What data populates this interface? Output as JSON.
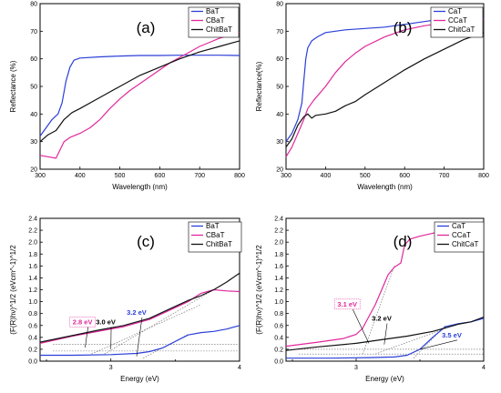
{
  "chart_data": [
    {
      "id": "a",
      "panel_label": "(a)",
      "type": "line",
      "xlabel": "Wavelength (nm)",
      "ylabel": "Reflectance (%)",
      "xlim": [
        300,
        800
      ],
      "ylim": [
        20,
        80
      ],
      "xticks": [
        300,
        400,
        500,
        600,
        700,
        800
      ],
      "yticks": [
        20,
        30,
        40,
        50,
        60,
        70,
        80
      ],
      "xtick_labels": [
        "300",
        "400",
        "500",
        "600",
        "700",
        "800"
      ],
      "ytick_labels": [
        "20",
        "30",
        "40",
        "50",
        "60",
        "70",
        "80"
      ],
      "legend": "top-right",
      "series": [
        {
          "name": "BaT",
          "color": "#2b3fd8",
          "points": [
            [
              300,
              32
            ],
            [
              315,
              35
            ],
            [
              330,
              38
            ],
            [
              345,
              40
            ],
            [
              355,
              44
            ],
            [
              365,
              52
            ],
            [
              375,
              57
            ],
            [
              385,
              59.5
            ],
            [
              400,
              60.3
            ],
            [
              450,
              60.7
            ],
            [
              500,
              61
            ],
            [
              550,
              61.2
            ],
            [
              600,
              61.2
            ],
            [
              650,
              61.3
            ],
            [
              700,
              61.3
            ],
            [
              750,
              61.3
            ],
            [
              800,
              61.2
            ]
          ]
        },
        {
          "name": "CBaT",
          "color": "#e0289c",
          "points": [
            [
              300,
              25
            ],
            [
              320,
              24.5
            ],
            [
              340,
              24
            ],
            [
              350,
              27
            ],
            [
              360,
              30
            ],
            [
              375,
              31.5
            ],
            [
              400,
              33
            ],
            [
              425,
              35
            ],
            [
              450,
              38
            ],
            [
              475,
              42
            ],
            [
              500,
              45.5
            ],
            [
              525,
              48.5
            ],
            [
              550,
              51
            ],
            [
              575,
              53.5
            ],
            [
              600,
              56
            ],
            [
              625,
              58.5
            ],
            [
              650,
              60.5
            ],
            [
              675,
              62.5
            ],
            [
              700,
              64.5
            ],
            [
              725,
              66
            ],
            [
              750,
              67.5
            ],
            [
              775,
              68.5
            ],
            [
              800,
              69.5
            ]
          ]
        },
        {
          "name": "ChitBaT",
          "color": "#111111",
          "points": [
            [
              300,
              30
            ],
            [
              320,
              32.5
            ],
            [
              340,
              34
            ],
            [
              360,
              38
            ],
            [
              380,
              40.5
            ],
            [
              400,
              42
            ],
            [
              450,
              46
            ],
            [
              500,
              50
            ],
            [
              550,
              54
            ],
            [
              600,
              57
            ],
            [
              650,
              60
            ],
            [
              700,
              62.5
            ],
            [
              750,
              64.5
            ],
            [
              800,
              66.5
            ]
          ]
        }
      ]
    },
    {
      "id": "b",
      "panel_label": "(b)",
      "type": "line",
      "xlabel": "Wavelength (nm)",
      "ylabel": "Reflectance(%)",
      "xlim": [
        300,
        800
      ],
      "ylim": [
        20,
        80
      ],
      "xticks": [
        300,
        400,
        500,
        600,
        700,
        800
      ],
      "yticks": [
        20,
        30,
        40,
        50,
        60,
        70,
        80
      ],
      "xtick_labels": [
        "300",
        "400",
        "500",
        "600",
        "700",
        "800"
      ],
      "ytick_labels": [
        "20",
        "30",
        "40",
        "50",
        "60",
        "70",
        "80"
      ],
      "legend": "top-right",
      "series": [
        {
          "name": "CaT",
          "color": "#2b3fd8",
          "points": [
            [
              300,
              30
            ],
            [
              315,
              33
            ],
            [
              330,
              38
            ],
            [
              340,
              44
            ],
            [
              345,
              52
            ],
            [
              350,
              60
            ],
            [
              355,
              64
            ],
            [
              365,
              66.5
            ],
            [
              380,
              68
            ],
            [
              400,
              69.5
            ],
            [
              450,
              70.5
            ],
            [
              500,
              71
            ],
            [
              550,
              71.5
            ],
            [
              600,
              72.5
            ],
            [
              650,
              73.5
            ],
            [
              700,
              74.5
            ],
            [
              750,
              75.2
            ],
            [
              800,
              75.5
            ]
          ]
        },
        {
          "name": "CCaT",
          "color": "#e0289c",
          "points": [
            [
              300,
              24.5
            ],
            [
              315,
              28
            ],
            [
              330,
              33
            ],
            [
              345,
              38
            ],
            [
              355,
              42
            ],
            [
              370,
              45
            ],
            [
              400,
              50
            ],
            [
              425,
              55
            ],
            [
              450,
              59
            ],
            [
              475,
              62
            ],
            [
              500,
              64.5
            ],
            [
              550,
              68
            ],
            [
              600,
              70.5
            ],
            [
              650,
              72
            ],
            [
              700,
              73
            ],
            [
              750,
              74
            ],
            [
              800,
              74.5
            ]
          ]
        },
        {
          "name": "ChitCaT",
          "color": "#111111",
          "points": [
            [
              300,
              28
            ],
            [
              315,
              31
            ],
            [
              330,
              36
            ],
            [
              345,
              39
            ],
            [
              355,
              40
            ],
            [
              365,
              38.5
            ],
            [
              375,
              39.5
            ],
            [
              400,
              40
            ],
            [
              425,
              41
            ],
            [
              450,
              43
            ],
            [
              475,
              44.5
            ],
            [
              500,
              47
            ],
            [
              550,
              51.5
            ],
            [
              600,
              56
            ],
            [
              650,
              60
            ],
            [
              700,
              63.5
            ],
            [
              750,
              67
            ],
            [
              800,
              69.5
            ]
          ]
        }
      ]
    },
    {
      "id": "c",
      "panel_label": "(c)",
      "type": "line",
      "xlabel": "Energy (eV)",
      "ylabel": "(F(R)hν)^1/2 (eVcm^-1)^1/2",
      "xlim": [
        2.45,
        4.0
      ],
      "ylim": [
        0,
        2.4
      ],
      "xticks": [
        3,
        4
      ],
      "xtick_labels": [
        "3",
        "4"
      ],
      "yticks": [
        0.0,
        0.2,
        0.4,
        0.6,
        0.8,
        1.0,
        1.2,
        1.4,
        1.6,
        1.8,
        2.0,
        2.2,
        2.4
      ],
      "ytick_labels": [
        "0.0",
        "0.2",
        "0.4",
        "0.6",
        "0.8",
        "1.0",
        "1.2",
        "1.4",
        "1.6",
        "1.8",
        "2.0",
        "2.2",
        "2.4"
      ],
      "legend": "top-right",
      "series": [
        {
          "name": "BaT",
          "color": "#2b3fd8",
          "points": [
            [
              2.45,
              0.1
            ],
            [
              2.7,
              0.1
            ],
            [
              3.0,
              0.11
            ],
            [
              3.2,
              0.13
            ],
            [
              3.3,
              0.16
            ],
            [
              3.4,
              0.22
            ],
            [
              3.5,
              0.33
            ],
            [
              3.6,
              0.44
            ],
            [
              3.7,
              0.48
            ],
            [
              3.8,
              0.5
            ],
            [
              3.9,
              0.54
            ],
            [
              4.0,
              0.6
            ]
          ]
        },
        {
          "name": "CBaT",
          "color": "#e0289c",
          "points": [
            [
              2.45,
              0.3
            ],
            [
              2.7,
              0.42
            ],
            [
              2.9,
              0.5
            ],
            [
              3.1,
              0.58
            ],
            [
              3.3,
              0.7
            ],
            [
              3.45,
              0.85
            ],
            [
              3.6,
              1.0
            ],
            [
              3.7,
              1.14
            ],
            [
              3.8,
              1.2
            ],
            [
              3.9,
              1.18
            ],
            [
              4.0,
              1.17
            ]
          ]
        },
        {
          "name": "ChitBaT",
          "color": "#111111",
          "points": [
            [
              2.45,
              0.32
            ],
            [
              2.7,
              0.43
            ],
            [
              2.9,
              0.52
            ],
            [
              3.1,
              0.6
            ],
            [
              3.3,
              0.72
            ],
            [
              3.45,
              0.87
            ],
            [
              3.6,
              1.02
            ],
            [
              3.7,
              1.1
            ],
            [
              3.8,
              1.2
            ],
            [
              3.9,
              1.33
            ],
            [
              4.0,
              1.48
            ]
          ]
        }
      ],
      "annotations": [
        {
          "text": "2.8 eV",
          "color": "#e0289c",
          "x": 2.78,
          "y": 0.62,
          "target": [
            2.8,
            0.23
          ],
          "boxed": true
        },
        {
          "text": "3.0 eV",
          "color": "#000000",
          "x": 2.96,
          "y": 0.62,
          "target": [
            3.0,
            0.2
          ],
          "boxed": false
        },
        {
          "text": "3.2 eV",
          "color": "#2b3fd8",
          "x": 3.2,
          "y": 0.78,
          "target": [
            3.2,
            0.08
          ],
          "boxed": false
        }
      ],
      "guides": [
        [
          [
            2.85,
            0.12
          ],
          [
            3.7,
            0.95
          ]
        ],
        [
          [
            2.95,
            0.12
          ],
          [
            3.8,
            1.2
          ]
        ],
        [
          [
            3.25,
            0.05
          ],
          [
            3.6,
            0.45
          ]
        ],
        [
          [
            2.55,
            0.17
          ],
          [
            4.0,
            0.17
          ]
        ],
        [
          [
            2.55,
            0.28
          ],
          [
            4.0,
            0.28
          ]
        ]
      ]
    },
    {
      "id": "d",
      "panel_label": "(d)",
      "type": "line",
      "xlabel": "Energy (eV)",
      "ylabel": "(F(R)hν)^1/2 (eVcm^-1)^1/2",
      "xlim": [
        2.45,
        4.0
      ],
      "ylim": [
        0,
        2.4
      ],
      "xticks": [
        3,
        4
      ],
      "xtick_labels": [
        "3",
        "4"
      ],
      "yticks": [
        0.0,
        0.2,
        0.4,
        0.6,
        0.8,
        1.0,
        1.2,
        1.4,
        1.6,
        1.8,
        2.0,
        2.2,
        2.4
      ],
      "ytick_labels": [
        "0.0",
        "0.2",
        "0.4",
        "0.6",
        "0.8",
        "1.0",
        "1.2",
        "1.4",
        "1.6",
        "1.8",
        "2.0",
        "2.2",
        "2.4"
      ],
      "legend": "top-right",
      "series": [
        {
          "name": "CaT",
          "color": "#2b3fd8",
          "points": [
            [
              2.45,
              0.05
            ],
            [
              2.8,
              0.05
            ],
            [
              3.1,
              0.06
            ],
            [
              3.3,
              0.07
            ],
            [
              3.4,
              0.1
            ],
            [
              3.5,
              0.2
            ],
            [
              3.6,
              0.4
            ],
            [
              3.7,
              0.58
            ],
            [
              3.8,
              0.63
            ],
            [
              3.9,
              0.66
            ],
            [
              4.0,
              0.72
            ]
          ]
        },
        {
          "name": "CCaT",
          "color": "#e0289c",
          "points": [
            [
              2.45,
              0.25
            ],
            [
              2.7,
              0.32
            ],
            [
              2.9,
              0.38
            ],
            [
              3.0,
              0.45
            ],
            [
              3.05,
              0.55
            ],
            [
              3.1,
              0.75
            ],
            [
              3.15,
              0.95
            ],
            [
              3.2,
              1.2
            ],
            [
              3.25,
              1.45
            ],
            [
              3.3,
              1.58
            ],
            [
              3.35,
              1.65
            ],
            [
              3.38,
              1.95
            ],
            [
              3.42,
              2.05
            ],
            [
              3.5,
              2.1
            ],
            [
              3.6,
              2.15
            ],
            [
              3.7,
              2.18
            ],
            [
              3.8,
              2.2
            ],
            [
              3.9,
              2.21
            ],
            [
              4.0,
              2.2
            ]
          ]
        },
        {
          "name": "ChitCaT",
          "color": "#111111",
          "points": [
            [
              2.45,
              0.18
            ],
            [
              2.7,
              0.24
            ],
            [
              3.0,
              0.3
            ],
            [
              3.2,
              0.36
            ],
            [
              3.4,
              0.42
            ],
            [
              3.6,
              0.5
            ],
            [
              3.7,
              0.56
            ],
            [
              3.8,
              0.62
            ],
            [
              3.9,
              0.66
            ],
            [
              4.0,
              0.74
            ]
          ]
        }
      ],
      "annotations": [
        {
          "text": "3.1 eV",
          "color": "#e0289c",
          "x": 2.93,
          "y": 0.92,
          "target": [
            3.1,
            0.3
          ],
          "boxed": true
        },
        {
          "text": "3.2 eV",
          "color": "#000000",
          "x": 3.2,
          "y": 0.68,
          "target": [
            3.22,
            0.28
          ],
          "boxed": false
        },
        {
          "text": "3.5 eV",
          "color": "#2b3fd8",
          "x": 3.75,
          "y": 0.4,
          "target": [
            3.5,
            0.2
          ],
          "boxed": false
        }
      ],
      "guides": [
        [
          [
            3.05,
            0.12
          ],
          [
            3.3,
            1.6
          ]
        ],
        [
          [
            3.15,
            0.12
          ],
          [
            3.7,
            0.55
          ]
        ],
        [
          [
            3.45,
            0.05
          ],
          [
            3.7,
            0.6
          ]
        ],
        [
          [
            2.55,
            0.12
          ],
          [
            4.0,
            0.12
          ]
        ],
        [
          [
            2.55,
            0.2
          ],
          [
            4.0,
            0.2
          ]
        ]
      ]
    }
  ]
}
